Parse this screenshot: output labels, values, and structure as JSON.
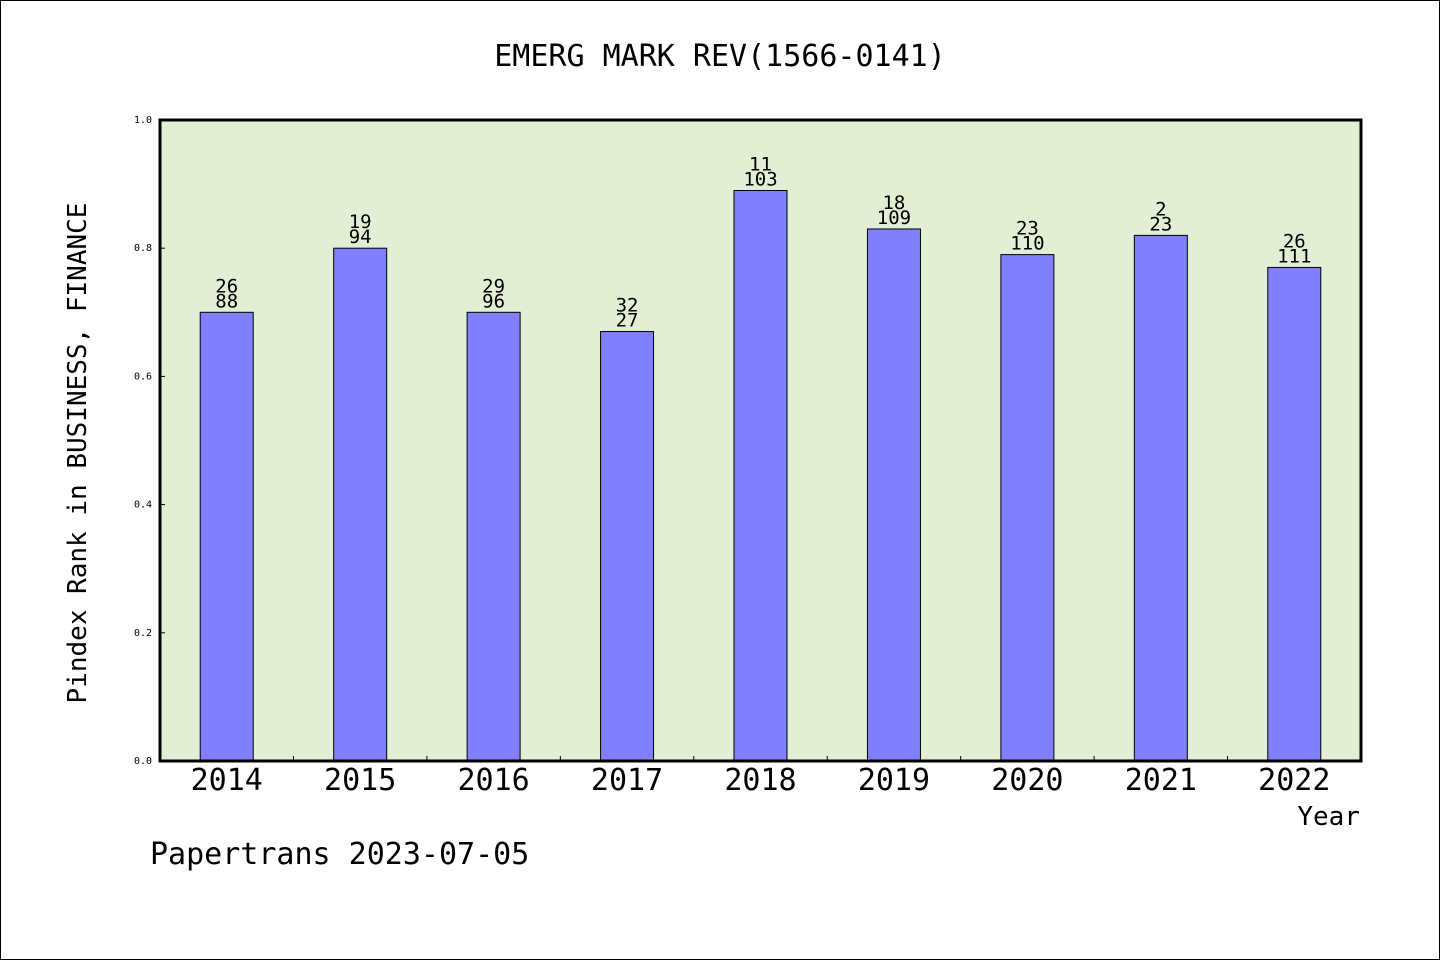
{
  "chart_data": {
    "type": "bar",
    "title": "EMERG MARK REV(1566-0141)",
    "xlabel": "Year",
    "ylabel": "Pindex Rank in BUSINESS, FINANCE",
    "categories": [
      "2014",
      "2015",
      "2016",
      "2017",
      "2018",
      "2019",
      "2020",
      "2021",
      "2022"
    ],
    "values": [
      0.7,
      0.8,
      0.7,
      0.67,
      0.89,
      0.83,
      0.79,
      0.82,
      0.77
    ],
    "labels_top": [
      "26",
      "19",
      "29",
      "32",
      "11",
      "18",
      "23",
      "2",
      "26"
    ],
    "labels_bottom": [
      "88",
      "94",
      "96",
      "27",
      "103",
      "109",
      "110",
      "23",
      "111"
    ],
    "ylim": [
      0,
      1.0
    ],
    "yticks": [
      "0.0",
      "0.2",
      "0.4",
      "0.6",
      "0.8",
      "1.0"
    ],
    "grid": false,
    "colors": {
      "plot_bg": "#e2efd5",
      "bar": "#8080ff",
      "bar_edge": "#000000"
    }
  },
  "footer": "Papertrans 2023-07-05"
}
